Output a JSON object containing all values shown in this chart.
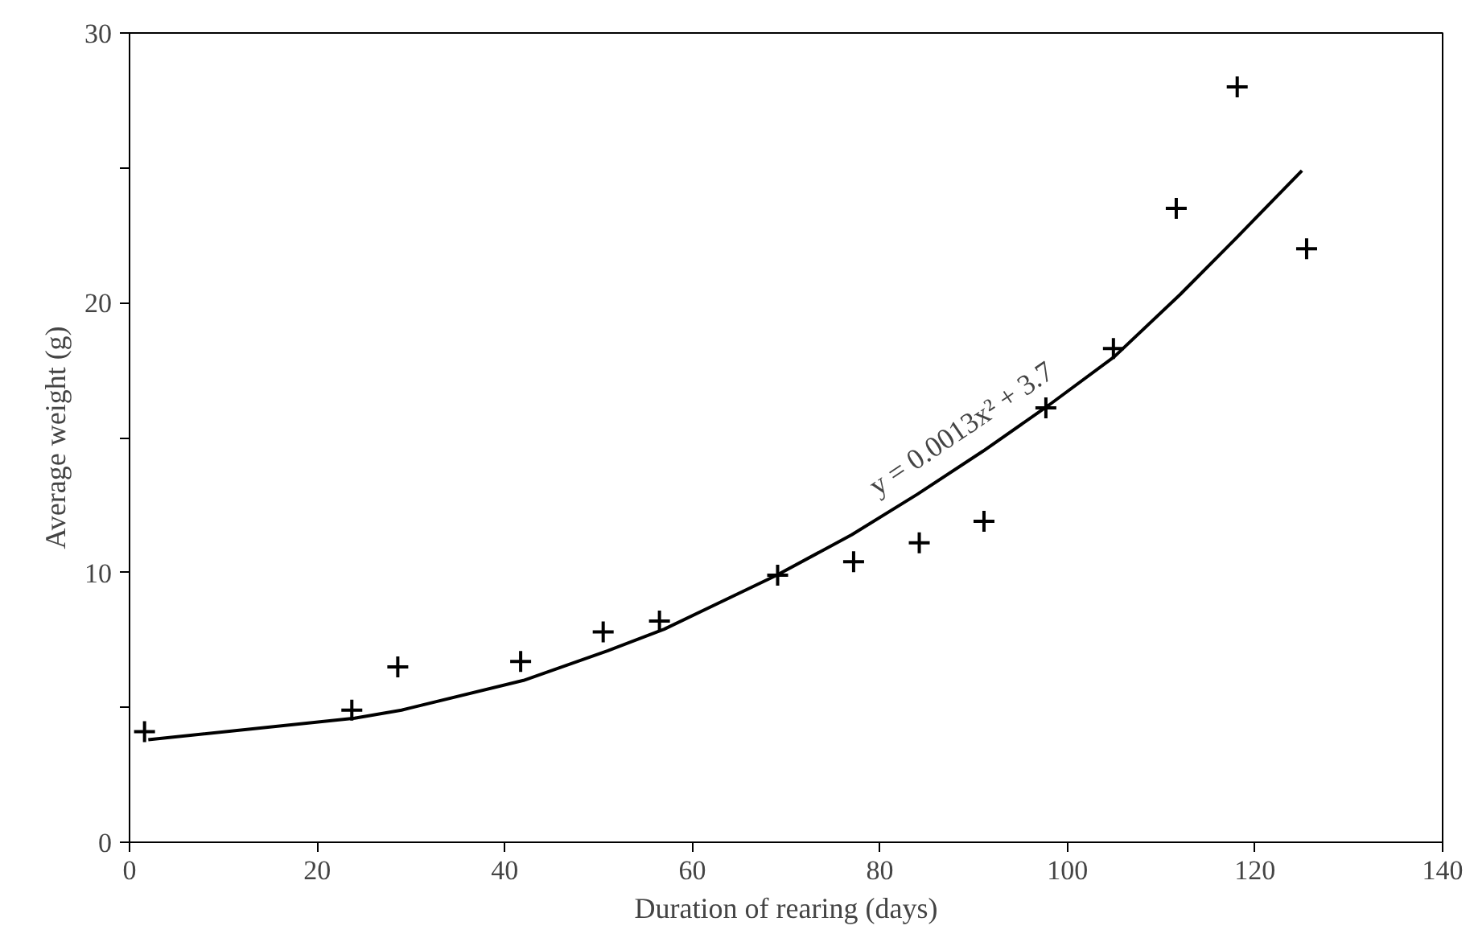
{
  "chart_data": {
    "type": "scatter",
    "xlabel": "Duration of rearing (days)",
    "ylabel": "Average weight (g)",
    "series": [
      {
        "color": "#000000",
        "marker": "cross",
        "x": [
          1.6,
          23.7,
          28.6,
          41.7,
          50.5,
          56.5,
          69.1,
          77.2,
          84.2,
          91.1,
          97.7,
          104.9,
          111.6,
          118.1,
          125.5
        ],
        "values": [
          4.1,
          4.9,
          6.5,
          6.7,
          7.8,
          8.2,
          9.9,
          10.4,
          11.1,
          11.9,
          16.1,
          18.3,
          23.5,
          28.0,
          22.0
        ]
      },
      {
        "type": "line",
        "color": "#000000",
        "line_style": "solid",
        "x": [
          2,
          24,
          29,
          42,
          51,
          57,
          69,
          77,
          84,
          91,
          98,
          105,
          112,
          118,
          125
        ],
        "values": [
          3.8,
          4.6,
          4.9,
          6.0,
          7.1,
          7.9,
          9.9,
          11.4,
          12.9,
          14.5,
          16.2,
          18.0,
          20.3,
          22.4,
          24.9
        ]
      }
    ],
    "annotations": [
      {
        "text": "y = 0.0013x² + 3.7",
        "x": 91,
        "y": 14.5
      }
    ],
    "xlim": [
      0,
      140
    ],
    "xticks": [
      0,
      20,
      40,
      60,
      80,
      100,
      120,
      140
    ],
    "ylim": [
      0,
      30
    ],
    "yticks": [
      0,
      {
        "value": 5,
        "label": null
      },
      10,
      {
        "value": 15,
        "label": null
      },
      20,
      {
        "value": 25,
        "label": null
      },
      30
    ],
    "grid": false
  }
}
